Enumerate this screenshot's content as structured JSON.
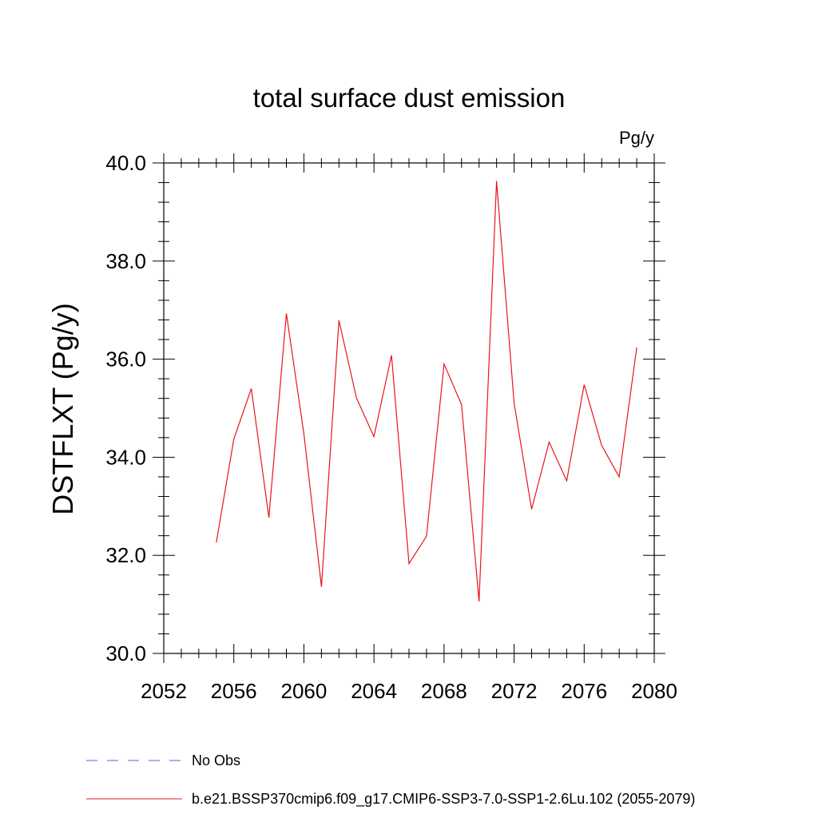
{
  "chart_data": {
    "type": "line",
    "title": "total surface dust emission",
    "units": "Pg/y",
    "xlabel": "",
    "ylabel": "DSTFLXT  (Pg/y)",
    "xlim": [
      2052,
      2080
    ],
    "ylim": [
      30.0,
      40.0
    ],
    "x_ticks": [
      2052,
      2056,
      2060,
      2064,
      2068,
      2072,
      2076,
      2080
    ],
    "x_tick_labels": [
      "2052",
      "2056",
      "2060",
      "2064",
      "2068",
      "2072",
      "2076",
      "2080"
    ],
    "y_ticks": [
      30,
      32,
      34,
      36,
      38,
      40
    ],
    "y_tick_labels": [
      "30.0",
      "32.0",
      "34.0",
      "36.0",
      "38.0",
      "40.0"
    ],
    "grid": false,
    "legend_position": "bottom",
    "series": [
      {
        "name": "b.e21.BSSP370cmip6.f09_g17.CMIP6-SSP3-7.0-SSP1-2.6Lu.102 (2055-2079)",
        "color": "#e8141c",
        "style": "solid",
        "x": [
          2055,
          2056,
          2057,
          2058,
          2059,
          2060,
          2061,
          2062,
          2063,
          2064,
          2065,
          2066,
          2067,
          2068,
          2069,
          2070,
          2071,
          2072,
          2073,
          2074,
          2075,
          2076,
          2077,
          2078,
          2079
        ],
        "y": [
          32.26,
          34.37,
          35.4,
          32.77,
          36.93,
          34.48,
          31.36,
          36.79,
          35.21,
          34.42,
          36.08,
          31.83,
          32.39,
          35.9,
          35.07,
          31.06,
          39.63,
          35.1,
          32.94,
          34.31,
          33.52,
          35.48,
          34.24,
          33.6,
          36.24
        ]
      },
      {
        "name": "No Obs",
        "color": "#6a5acd",
        "style": "dashed",
        "x": [],
        "y": []
      }
    ]
  }
}
